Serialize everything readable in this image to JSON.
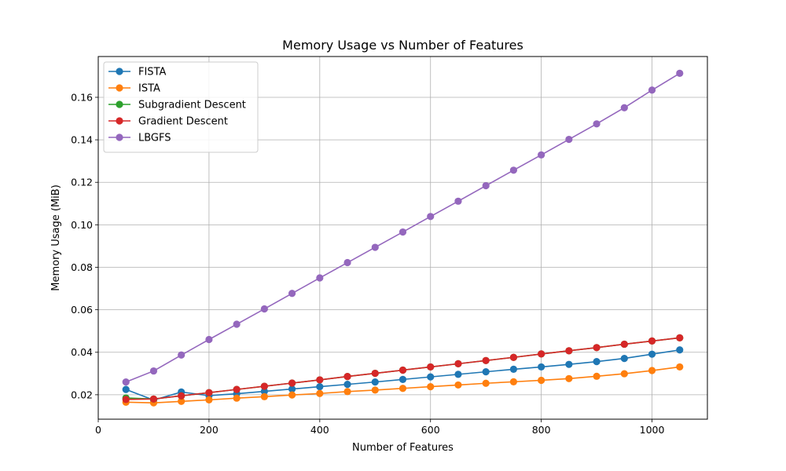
{
  "chart_data": {
    "type": "line",
    "title": "Memory Usage vs Number of Features",
    "xlabel": "Number of Features",
    "ylabel": "Memory Usage (MiB)",
    "xlim": [
      0,
      1100
    ],
    "ylim": [
      0.0085,
      0.1792
    ],
    "xticks": [
      0,
      200,
      400,
      600,
      800,
      1000
    ],
    "yticks": [
      0.02,
      0.04,
      0.06,
      0.08,
      0.1,
      0.12,
      0.14,
      0.16
    ],
    "grid": true,
    "legend_position": "top-left",
    "x": [
      50,
      100,
      150,
      200,
      250,
      300,
      350,
      400,
      450,
      500,
      550,
      600,
      650,
      700,
      750,
      800,
      850,
      900,
      950,
      1000,
      1050
    ],
    "series": [
      {
        "name": "FISTA",
        "color": "#1f77b4",
        "values": [
          0.0225,
          0.0175,
          0.0213,
          0.0196,
          0.0205,
          0.0216,
          0.0227,
          0.0238,
          0.0249,
          0.026,
          0.0272,
          0.0284,
          0.0296,
          0.0308,
          0.032,
          0.0331,
          0.0343,
          0.0356,
          0.0371,
          0.0391,
          0.0411
        ]
      },
      {
        "name": "ISTA",
        "color": "#ff7f0e",
        "values": [
          0.0165,
          0.0162,
          0.0169,
          0.0176,
          0.0184,
          0.0191,
          0.0199,
          0.0206,
          0.0215,
          0.0222,
          0.023,
          0.0238,
          0.0246,
          0.0254,
          0.0261,
          0.0268,
          0.0276,
          0.0287,
          0.0299,
          0.0314,
          0.0331
        ]
      },
      {
        "name": "Subgradient Descent",
        "color": "#2ca02c",
        "values": [
          0.0185,
          0.018,
          0.0195,
          0.021,
          0.0225,
          0.024,
          0.0255,
          0.027,
          0.0286,
          0.0301,
          0.0316,
          0.0331,
          0.0346,
          0.0361,
          0.0376,
          0.0392,
          0.0407,
          0.0422,
          0.0438,
          0.0453,
          0.0468
        ]
      },
      {
        "name": "Gradient Descent",
        "color": "#d62728",
        "values": [
          0.0178,
          0.018,
          0.0195,
          0.021,
          0.0225,
          0.024,
          0.0255,
          0.027,
          0.0286,
          0.0301,
          0.0316,
          0.0331,
          0.0346,
          0.0361,
          0.0376,
          0.0392,
          0.0407,
          0.0422,
          0.0438,
          0.0453,
          0.0468
        ]
      },
      {
        "name": "LBGFS",
        "color": "#9467bd",
        "values": [
          0.026,
          0.0312,
          0.0387,
          0.046,
          0.0532,
          0.0604,
          0.0677,
          0.075,
          0.0822,
          0.0894,
          0.0966,
          0.1039,
          0.1111,
          0.1184,
          0.1257,
          0.1329,
          0.1402,
          0.1475,
          0.1551,
          0.1634,
          0.1713
        ]
      }
    ]
  }
}
